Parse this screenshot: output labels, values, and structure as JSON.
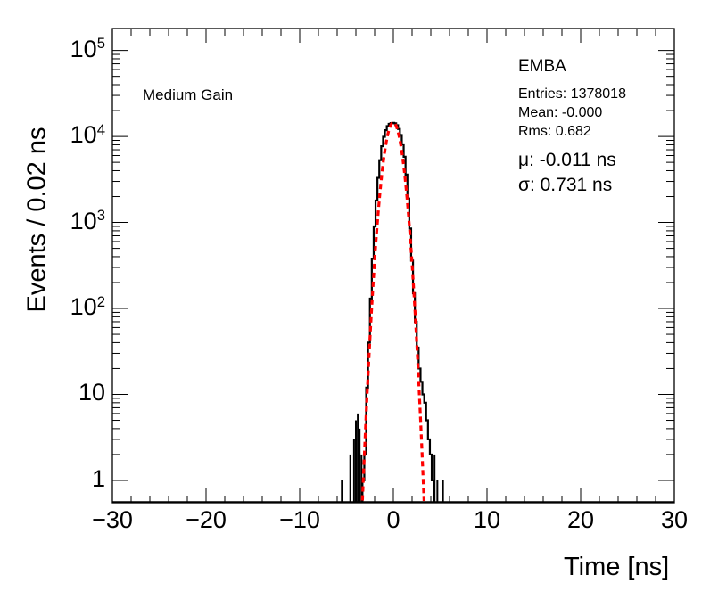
{
  "chart_data": {
    "type": "line",
    "title": "",
    "xlabel": "Time [ns]",
    "ylabel": "Events / 0.02 ns",
    "xlim": [
      -30,
      30
    ],
    "ylim": [
      0.55,
      180000
    ],
    "yscale": "log",
    "grid": false,
    "xticks": [
      -30,
      -20,
      -10,
      0,
      10,
      20,
      30
    ],
    "xtick_labels": [
      "−30",
      "−20",
      "−10",
      "0",
      "10",
      "20",
      "30"
    ],
    "ytick_labels": [
      {
        "value": 1,
        "base": "1",
        "exp": ""
      },
      {
        "value": 10,
        "base": "10",
        "exp": ""
      },
      {
        "value": 100,
        "base": "10",
        "exp": "2"
      },
      {
        "value": 1000,
        "base": "10",
        "exp": "3"
      },
      {
        "value": 10000,
        "base": "10",
        "exp": "4"
      },
      {
        "value": 100000,
        "base": "10",
        "exp": "5"
      }
    ],
    "series": [
      {
        "style": "histogram",
        "color": "#000000",
        "x": [
          -3.2,
          -3.0,
          -2.8,
          -2.6,
          -2.4,
          -2.2,
          -2.0,
          -1.8,
          -1.6,
          -1.4,
          -1.2,
          -1.0,
          -0.8,
          -0.6,
          -0.4,
          -0.2,
          0.0,
          0.2,
          0.4,
          0.6,
          0.8,
          1.0,
          1.2,
          1.4,
          1.6,
          1.8,
          2.0,
          2.2,
          2.4,
          2.6,
          2.8,
          3.0,
          3.2,
          3.4,
          3.6,
          3.8,
          4.0,
          4.2
        ],
        "y": [
          1,
          2,
          12,
          40,
          130,
          380,
          900,
          1800,
          3300,
          5300,
          7700,
          9900,
          11800,
          13200,
          14000,
          14300,
          14400,
          14200,
          13500,
          12200,
          10400,
          8100,
          5800,
          3600,
          1900,
          850,
          360,
          150,
          70,
          35,
          20,
          14,
          10,
          8,
          5,
          3,
          2,
          1
        ]
      },
      {
        "name": "fit",
        "style": "dashed",
        "color": "#ff0000",
        "mu": -0.011,
        "sigma": 0.731,
        "amplitude": 14500
      }
    ],
    "outliers": [
      {
        "x": -5.5,
        "y": 1
      },
      {
        "x": -4.6,
        "y": 2
      },
      {
        "x": -4.2,
        "y": 3
      },
      {
        "x": -4.0,
        "y": 5
      },
      {
        "x": -3.8,
        "y": 6
      },
      {
        "x": -3.6,
        "y": 4
      },
      {
        "x": -3.4,
        "y": 2
      },
      {
        "x": 4.4,
        "y": 2
      },
      {
        "x": 4.7,
        "y": 1
      },
      {
        "x": 5.3,
        "y": 1
      }
    ]
  },
  "annotations": {
    "category": "Medium Gain",
    "partition": "EMBA",
    "entries": "Entries: 1378018",
    "mean": "Mean: -0.000",
    "rms": "Rms: 0.682",
    "mu_label": "μ: -0.011 ns",
    "sigma_label": "σ: 0.731 ns"
  }
}
